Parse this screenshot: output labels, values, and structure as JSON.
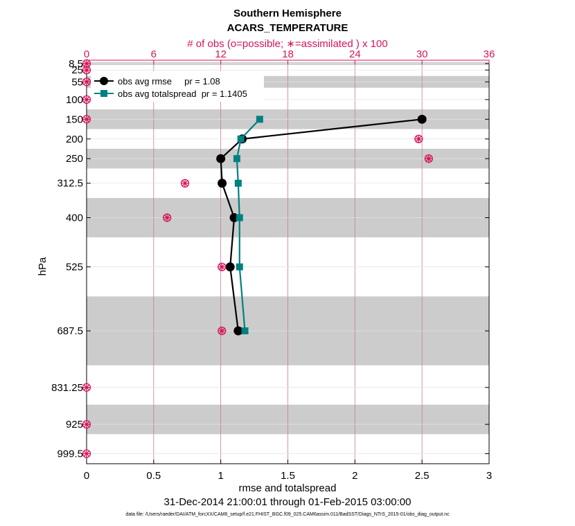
{
  "chart_data": {
    "type": "line",
    "title": "Southern Hemisphere",
    "subtitle": "ACARS_TEMPERATURE",
    "top_axis_label": "# of obs (o=possible; ∗=assimilated ) x 100",
    "xlabel": "rmse and totalspread",
    "ylabel": "hPa",
    "date_range": "31-Dec-2014 21:00:01 through 01-Feb-2015 03:00:00",
    "data_file": "data file: /Users/raeder/DAI/ATM_forcXX/CAM6_setup/f.e21.FHIST_BGC.f09_025.CAM6assim.011/BadSST/Diags_NTrS_2015-01/obs_diag_output.nc",
    "xlim": [
      0,
      3
    ],
    "x_ticks": [
      "0",
      "0.5",
      "1",
      "1.5",
      "2",
      "2.5",
      "3"
    ],
    "x_tick_values": [
      0,
      0.5,
      1,
      1.5,
      2,
      2.5,
      3
    ],
    "top_xlim": [
      0,
      36
    ],
    "top_ticks": [
      "0",
      "6",
      "12",
      "18",
      "24",
      "30",
      "36"
    ],
    "top_tick_values": [
      0,
      6,
      12,
      18,
      24,
      30,
      36
    ],
    "ylim_hPa": [
      1025,
      0
    ],
    "y_ticks": [
      "8.5",
      "25",
      "55",
      "100",
      "150",
      "200",
      "250",
      "312.5",
      "400",
      "525",
      "687.5",
      "831.25",
      "925",
      "999.5"
    ],
    "y_tick_values": [
      8.5,
      25,
      55,
      100,
      150,
      200,
      250,
      312.5,
      400,
      525,
      687.5,
      831.25,
      925,
      999.5
    ],
    "shaded_bands_hPa": [
      [
        5,
        12
      ],
      [
        40,
        70
      ],
      [
        125,
        175
      ],
      [
        225,
        275
      ],
      [
        350,
        450
      ],
      [
        600,
        775
      ],
      [
        875,
        950
      ]
    ],
    "series": [
      {
        "name": "obs avg rmse",
        "legend": "obs avg rmse     pr = 1.08",
        "color": "#000000",
        "marker": "circle",
        "levels": [
          150,
          200,
          250,
          312.5,
          400,
          525,
          687.5
        ],
        "values": [
          2.5,
          1.16,
          1.0,
          1.01,
          1.1,
          1.07,
          1.13
        ]
      },
      {
        "name": "obs avg totalspread",
        "legend": "obs avg totalspread  pr = 1.1405",
        "color": "#008080",
        "marker": "square",
        "levels": [
          150,
          200,
          250,
          312.5,
          400,
          525,
          687.5
        ],
        "values": [
          1.29,
          1.15,
          1.12,
          1.13,
          1.14,
          1.14,
          1.18
        ]
      }
    ],
    "obs_counts": {
      "color": "#d6145a",
      "units": "x 100",
      "levels": [
        8.5,
        25,
        55,
        100,
        150,
        200,
        250,
        312.5,
        400,
        525,
        687.5,
        831.25,
        925,
        999.5
      ],
      "possible": [
        0,
        0,
        0,
        0,
        0,
        29.7,
        30.6,
        8.8,
        7.2,
        12.1,
        12.1,
        0,
        0,
        0
      ],
      "assimilated": [
        0,
        0,
        0,
        0,
        0,
        29.7,
        30.6,
        8.8,
        7.2,
        12.1,
        12.1,
        0,
        0,
        0
      ]
    }
  }
}
